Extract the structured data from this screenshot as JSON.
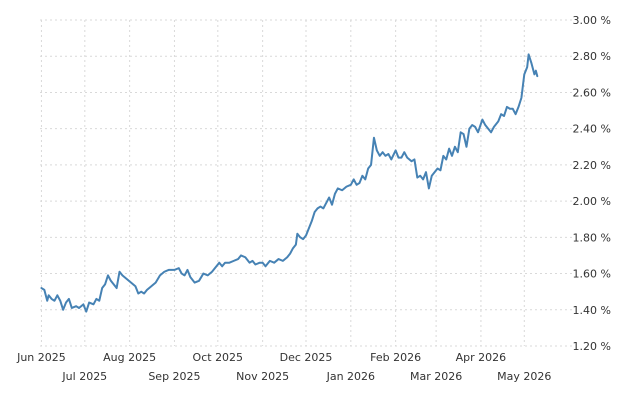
{
  "chart_data": {
    "type": "line",
    "title": "",
    "xlabel": "",
    "ylabel": "",
    "y_unit": "%",
    "ylim": [
      1.2,
      3.0
    ],
    "yticks": [
      1.2,
      1.4,
      1.6,
      1.8,
      2.0,
      2.2,
      2.4,
      2.6,
      2.8,
      3.0
    ],
    "ytick_labels": [
      "1.20 %",
      "1.40 %",
      "1.60 %",
      "1.80 %",
      "2.00 %",
      "2.20 %",
      "2.40 %",
      "2.60 %",
      "2.80 %",
      "3.00 %"
    ],
    "y_axis_side": "right",
    "xlim": [
      "2025-05-31",
      "2026-06-03"
    ],
    "xticks": [
      {
        "date": "2025-06-01",
        "label": "Jun 2025",
        "row": 1
      },
      {
        "date": "2025-07-01",
        "label": "Jul 2025",
        "row": 2
      },
      {
        "date": "2025-08-01",
        "label": "Aug 2025",
        "row": 1
      },
      {
        "date": "2025-09-01",
        "label": "Sep 2025",
        "row": 2
      },
      {
        "date": "2025-10-01",
        "label": "Oct 2025",
        "row": 1
      },
      {
        "date": "2025-11-01",
        "label": "Nov 2025",
        "row": 2
      },
      {
        "date": "2025-12-01",
        "label": "Dec 2025",
        "row": 1
      },
      {
        "date": "2026-01-01",
        "label": "Jan 2026",
        "row": 2
      },
      {
        "date": "2026-02-01",
        "label": "Feb 2026",
        "row": 1
      },
      {
        "date": "2026-03-01",
        "label": "Mar 2026",
        "row": 2
      },
      {
        "date": "2026-04-01",
        "label": "Apr 2026",
        "row": 1
      },
      {
        "date": "2026-05-01",
        "label": "May 2026",
        "row": 2
      }
    ],
    "grid": true,
    "legend": "none",
    "series": [
      {
        "color": "#4682b4",
        "points": [
          [
            "2025-06-01",
            1.52
          ],
          [
            "2025-06-03",
            1.51
          ],
          [
            "2025-06-05",
            1.45
          ],
          [
            "2025-06-06",
            1.48
          ],
          [
            "2025-06-08",
            1.46
          ],
          [
            "2025-06-10",
            1.45
          ],
          [
            "2025-06-12",
            1.48
          ],
          [
            "2025-06-14",
            1.45
          ],
          [
            "2025-06-16",
            1.4
          ],
          [
            "2025-06-18",
            1.44
          ],
          [
            "2025-06-20",
            1.46
          ],
          [
            "2025-06-22",
            1.41
          ],
          [
            "2025-06-25",
            1.42
          ],
          [
            "2025-06-27",
            1.41
          ],
          [
            "2025-06-30",
            1.43
          ],
          [
            "2025-07-02",
            1.39
          ],
          [
            "2025-07-04",
            1.44
          ],
          [
            "2025-07-07",
            1.43
          ],
          [
            "2025-07-09",
            1.46
          ],
          [
            "2025-07-11",
            1.45
          ],
          [
            "2025-07-13",
            1.52
          ],
          [
            "2025-07-15",
            1.54
          ],
          [
            "2025-07-17",
            1.59
          ],
          [
            "2025-07-19",
            1.56
          ],
          [
            "2025-07-21",
            1.54
          ],
          [
            "2025-07-23",
            1.52
          ],
          [
            "2025-07-25",
            1.61
          ],
          [
            "2025-07-27",
            1.59
          ],
          [
            "2025-07-30",
            1.57
          ],
          [
            "2025-08-02",
            1.55
          ],
          [
            "2025-08-05",
            1.53
          ],
          [
            "2025-08-07",
            1.49
          ],
          [
            "2025-08-09",
            1.5
          ],
          [
            "2025-08-11",
            1.49
          ],
          [
            "2025-08-13",
            1.51
          ],
          [
            "2025-08-16",
            1.53
          ],
          [
            "2025-08-19",
            1.55
          ],
          [
            "2025-08-22",
            1.59
          ],
          [
            "2025-08-25",
            1.61
          ],
          [
            "2025-08-28",
            1.62
          ],
          [
            "2025-09-01",
            1.62
          ],
          [
            "2025-09-04",
            1.63
          ],
          [
            "2025-09-06",
            1.6
          ],
          [
            "2025-09-08",
            1.59
          ],
          [
            "2025-09-10",
            1.62
          ],
          [
            "2025-09-12",
            1.58
          ],
          [
            "2025-09-15",
            1.55
          ],
          [
            "2025-09-18",
            1.56
          ],
          [
            "2025-09-21",
            1.6
          ],
          [
            "2025-09-24",
            1.59
          ],
          [
            "2025-09-27",
            1.61
          ],
          [
            "2025-09-29",
            1.63
          ],
          [
            "2025-10-02",
            1.66
          ],
          [
            "2025-10-04",
            1.64
          ],
          [
            "2025-10-06",
            1.66
          ],
          [
            "2025-10-09",
            1.66
          ],
          [
            "2025-10-12",
            1.67
          ],
          [
            "2025-10-15",
            1.68
          ],
          [
            "2025-10-17",
            1.7
          ],
          [
            "2025-10-20",
            1.69
          ],
          [
            "2025-10-23",
            1.66
          ],
          [
            "2025-10-25",
            1.67
          ],
          [
            "2025-10-27",
            1.65
          ],
          [
            "2025-10-30",
            1.66
          ],
          [
            "2025-11-01",
            1.66
          ],
          [
            "2025-11-03",
            1.64
          ],
          [
            "2025-11-06",
            1.67
          ],
          [
            "2025-11-09",
            1.66
          ],
          [
            "2025-11-12",
            1.68
          ],
          [
            "2025-11-15",
            1.67
          ],
          [
            "2025-11-18",
            1.69
          ],
          [
            "2025-11-20",
            1.71
          ],
          [
            "2025-11-22",
            1.74
          ],
          [
            "2025-11-24",
            1.76
          ],
          [
            "2025-11-25",
            1.82
          ],
          [
            "2025-11-27",
            1.8
          ],
          [
            "2025-11-29",
            1.79
          ],
          [
            "2025-12-01",
            1.81
          ],
          [
            "2025-12-03",
            1.85
          ],
          [
            "2025-12-05",
            1.89
          ],
          [
            "2025-12-07",
            1.94
          ],
          [
            "2025-12-09",
            1.96
          ],
          [
            "2025-12-11",
            1.97
          ],
          [
            "2025-12-13",
            1.96
          ],
          [
            "2025-12-15",
            1.99
          ],
          [
            "2025-12-17",
            2.02
          ],
          [
            "2025-12-19",
            1.98
          ],
          [
            "2025-12-21",
            2.04
          ],
          [
            "2025-12-23",
            2.07
          ],
          [
            "2025-12-26",
            2.06
          ],
          [
            "2025-12-29",
            2.08
          ],
          [
            "2026-01-01",
            2.09
          ],
          [
            "2026-01-03",
            2.12
          ],
          [
            "2026-01-05",
            2.09
          ],
          [
            "2026-01-07",
            2.1
          ],
          [
            "2026-01-09",
            2.14
          ],
          [
            "2026-01-11",
            2.12
          ],
          [
            "2026-01-13",
            2.18
          ],
          [
            "2026-01-15",
            2.2
          ],
          [
            "2026-01-17",
            2.35
          ],
          [
            "2026-01-19",
            2.28
          ],
          [
            "2026-01-21",
            2.25
          ],
          [
            "2026-01-23",
            2.27
          ],
          [
            "2026-01-25",
            2.25
          ],
          [
            "2026-01-27",
            2.26
          ],
          [
            "2026-01-29",
            2.23
          ],
          [
            "2026-02-01",
            2.28
          ],
          [
            "2026-02-03",
            2.24
          ],
          [
            "2026-02-05",
            2.24
          ],
          [
            "2026-02-07",
            2.27
          ],
          [
            "2026-02-09",
            2.24
          ],
          [
            "2026-02-12",
            2.22
          ],
          [
            "2026-02-14",
            2.23
          ],
          [
            "2026-02-16",
            2.13
          ],
          [
            "2026-02-18",
            2.14
          ],
          [
            "2026-02-20",
            2.12
          ],
          [
            "2026-02-22",
            2.16
          ],
          [
            "2026-02-24",
            2.07
          ],
          [
            "2026-02-26",
            2.14
          ],
          [
            "2026-02-28",
            2.16
          ],
          [
            "2026-03-02",
            2.18
          ],
          [
            "2026-03-04",
            2.17
          ],
          [
            "2026-03-06",
            2.25
          ],
          [
            "2026-03-08",
            2.23
          ],
          [
            "2026-03-10",
            2.29
          ],
          [
            "2026-03-12",
            2.25
          ],
          [
            "2026-03-14",
            2.3
          ],
          [
            "2026-03-16",
            2.27
          ],
          [
            "2026-03-18",
            2.38
          ],
          [
            "2026-03-20",
            2.37
          ],
          [
            "2026-03-22",
            2.3
          ],
          [
            "2026-03-24",
            2.4
          ],
          [
            "2026-03-26",
            2.42
          ],
          [
            "2026-03-28",
            2.41
          ],
          [
            "2026-03-30",
            2.38
          ],
          [
            "2026-04-02",
            2.45
          ],
          [
            "2026-04-04",
            2.42
          ],
          [
            "2026-04-06",
            2.4
          ],
          [
            "2026-04-08",
            2.38
          ],
          [
            "2026-04-10",
            2.41
          ],
          [
            "2026-04-13",
            2.44
          ],
          [
            "2026-04-15",
            2.48
          ],
          [
            "2026-04-17",
            2.47
          ],
          [
            "2026-04-19",
            2.52
          ],
          [
            "2026-04-21",
            2.51
          ],
          [
            "2026-04-23",
            2.51
          ],
          [
            "2026-04-25",
            2.48
          ],
          [
            "2026-04-27",
            2.52
          ],
          [
            "2026-04-29",
            2.57
          ],
          [
            "2026-05-01",
            2.7
          ],
          [
            "2026-05-03",
            2.74
          ],
          [
            "2026-05-04",
            2.81
          ],
          [
            "2026-05-06",
            2.76
          ],
          [
            "2026-05-08",
            2.7
          ],
          [
            "2026-05-09",
            2.72
          ],
          [
            "2026-05-10",
            2.69
          ]
        ]
      }
    ]
  }
}
